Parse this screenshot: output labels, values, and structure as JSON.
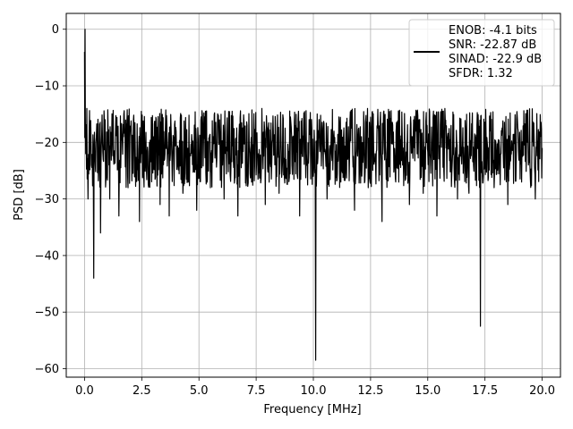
{
  "chart_data": {
    "type": "line",
    "title": "",
    "xlabel": "Frequency [MHz]",
    "ylabel": "PSD [dB]",
    "xlim": [
      -0.8,
      20.8
    ],
    "ylim": [
      -61.5,
      2.8
    ],
    "xticks": [
      0.0,
      2.5,
      5.0,
      7.5,
      10.0,
      12.5,
      15.0,
      17.5,
      20.0
    ],
    "xtick_labels": [
      "0.0",
      "2.5",
      "5.0",
      "7.5",
      "10.0",
      "12.5",
      "15.0",
      "17.5",
      "20.0"
    ],
    "yticks": [
      0,
      -10,
      -20,
      -30,
      -40,
      -50,
      -60
    ],
    "ytick_labels": [
      "0",
      "−10",
      "−20",
      "−30",
      "−40",
      "−50",
      "−60"
    ],
    "grid": true,
    "legend_position": "top-right",
    "legend_entries": [
      "ENOB: -4.1 bits",
      "SNR: -22.87 dB",
      "SINAD: -22.9 dB",
      "SFDR: 1.32"
    ],
    "line_color": "#000000",
    "series": [
      {
        "x": [
          0.0,
          0.02,
          0.05,
          0.1,
          0.15,
          0.2,
          0.3,
          0.4,
          0.5,
          0.7,
          0.9,
          1.1,
          1.3,
          1.5,
          1.7,
          1.9,
          2.1,
          2.4,
          2.7,
          3.0,
          3.3,
          3.5,
          3.7,
          4.0,
          4.3,
          4.6,
          4.9,
          5.2,
          5.5,
          5.8,
          6.1,
          6.4,
          6.7,
          7.0,
          7.3,
          7.6,
          7.9,
          8.2,
          8.5,
          8.8,
          9.1,
          9.4,
          9.7,
          10.0,
          10.1,
          10.3,
          10.6,
          10.9,
          11.2,
          11.5,
          11.8,
          12.1,
          12.4,
          12.7,
          13.0,
          13.3,
          13.6,
          13.9,
          14.2,
          14.5,
          14.8,
          15.1,
          15.4,
          15.7,
          16.0,
          16.3,
          16.6,
          16.8,
          17.0,
          17.3,
          17.6,
          17.9,
          18.2,
          18.5,
          18.8,
          19.1,
          19.4,
          19.7,
          20.0
        ],
        "y": [
          -4,
          0,
          -22,
          -14,
          -30,
          -18,
          -24,
          -44,
          -20,
          -36,
          -16,
          -30,
          -22,
          -33,
          -19,
          -28,
          -21,
          -34,
          -24,
          -19,
          -31,
          -23,
          -33,
          -18,
          -29,
          -22,
          -32,
          -20,
          -28,
          -19,
          -30,
          -24,
          -33,
          -18,
          -27,
          -22,
          -31,
          -20,
          -29,
          -23,
          -19,
          -33,
          -22,
          -26,
          -58.5,
          -21,
          -30,
          -18,
          -27,
          -23,
          -32,
          -19,
          -28,
          -22,
          -34,
          -20,
          -27,
          -24,
          -31,
          -18,
          -29,
          -22,
          -33,
          -25,
          -19,
          -30,
          -23,
          -29,
          -24,
          -52.5,
          -20,
          -28,
          -22,
          -31,
          -19,
          -27,
          -24,
          -30,
          -21
        ]
      }
    ]
  }
}
